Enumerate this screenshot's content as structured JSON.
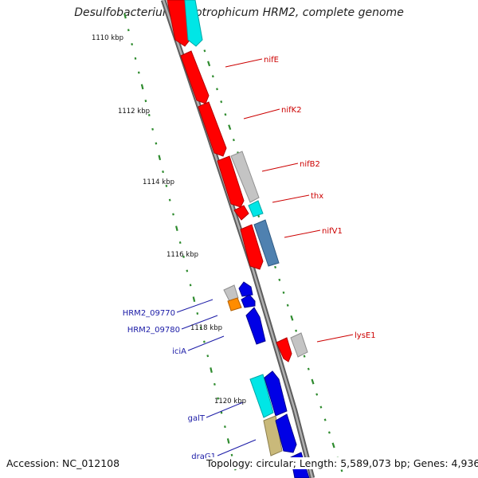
{
  "title": "Desulfobacterium autotrophicum HRM2, complete genome",
  "footer": {
    "accession": "Accession: NC_012108",
    "summary": "Topology: circular; Length: 5,589,073 bp; Genes: 4,936"
  },
  "ticks": [
    "1110 kbp",
    "1112 kbp",
    "1114 kbp",
    "1116 kbp",
    "1118 kbp",
    "1120 kbp"
  ],
  "colors": {
    "backbone": "#8a8a8a",
    "tick": "#2e8b2e",
    "red": "#ff0000",
    "cyan": "#00e6e6",
    "blue": "#0000e6",
    "steel": "#4f81b0",
    "gray": "#c4c4c4",
    "orange": "#ff8c00",
    "khaki": "#c9b97a",
    "label_red": "#cc0000",
    "label_blue": "#1a1aa6"
  },
  "genes": [
    {
      "id": "g1",
      "color": "red"
    },
    {
      "id": "g2",
      "color": "cyan"
    },
    {
      "id": "nifE",
      "color": "red"
    },
    {
      "id": "nifK2",
      "color": "red"
    },
    {
      "id": "g5",
      "color": "gray"
    },
    {
      "id": "nifB2",
      "color": "red"
    },
    {
      "id": "g7",
      "color": "red"
    },
    {
      "id": "thx",
      "color": "cyan"
    },
    {
      "id": "nifV1",
      "color": "steel"
    },
    {
      "id": "g10",
      "color": "red"
    },
    {
      "id": "HRM2_09770",
      "color": "gray"
    },
    {
      "id": "HRM2_09780",
      "color": "orange"
    },
    {
      "id": "g13",
      "color": "blue"
    },
    {
      "id": "g14",
      "color": "blue"
    },
    {
      "id": "iciA",
      "color": "blue"
    },
    {
      "id": "lysE1",
      "color": "red"
    },
    {
      "id": "g17",
      "color": "gray"
    },
    {
      "id": "galT",
      "color": "cyan"
    },
    {
      "id": "g19",
      "color": "blue"
    },
    {
      "id": "draG1",
      "color": "khaki"
    },
    {
      "id": "g21",
      "color": "blue"
    },
    {
      "id": "g22",
      "color": "blue"
    }
  ],
  "labels": [
    {
      "text": "nifE",
      "color": "label_red"
    },
    {
      "text": "nifK2",
      "color": "label_red"
    },
    {
      "text": "nifB2",
      "color": "label_red"
    },
    {
      "text": "thx",
      "color": "label_red"
    },
    {
      "text": "nifV1",
      "color": "label_red"
    },
    {
      "text": "lysE1",
      "color": "label_red"
    },
    {
      "text": "HRM2_09770",
      "color": "label_blue"
    },
    {
      "text": "HRM2_09780",
      "color": "label_blue"
    },
    {
      "text": "iciA",
      "color": "label_blue"
    },
    {
      "text": "galT",
      "color": "label_blue"
    },
    {
      "text": "draG1",
      "color": "label_blue"
    }
  ]
}
